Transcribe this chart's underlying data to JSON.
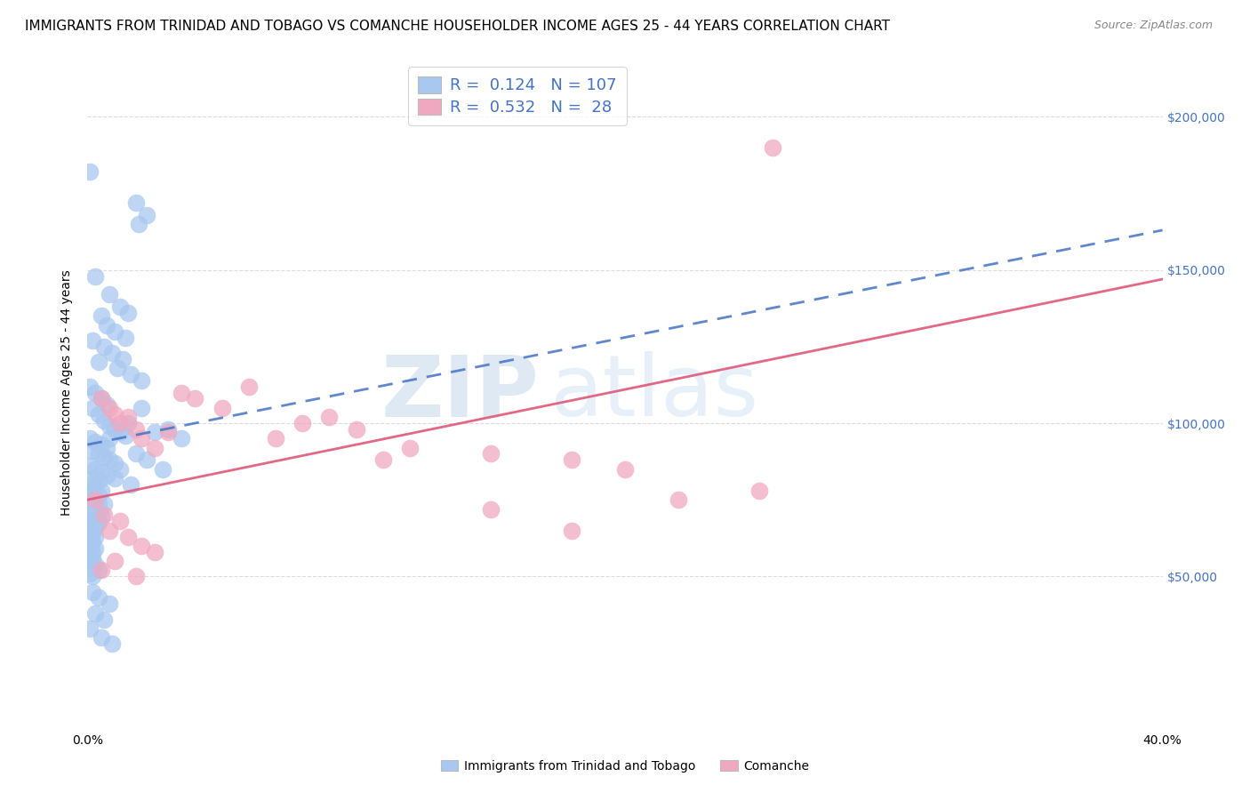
{
  "title": "IMMIGRANTS FROM TRINIDAD AND TOBAGO VS COMANCHE HOUSEHOLDER INCOME AGES 25 - 44 YEARS CORRELATION CHART",
  "source": "Source: ZipAtlas.com",
  "ylabel": "Householder Income Ages 25 - 44 years",
  "xlim": [
    0.0,
    0.4
  ],
  "ylim": [
    0,
    220000
  ],
  "xticks": [
    0.0,
    0.05,
    0.1,
    0.15,
    0.2,
    0.25,
    0.3,
    0.35,
    0.4
  ],
  "xticklabels": [
    "0.0%",
    "",
    "",
    "",
    "",
    "",
    "",
    "",
    "40.0%"
  ],
  "ytick_positions": [
    0,
    50000,
    100000,
    150000,
    200000
  ],
  "ytick_labels": [
    "",
    "$50,000",
    "$100,000",
    "$150,000",
    "$200,000"
  ],
  "blue_color": "#a8c8f0",
  "pink_color": "#f0a8c0",
  "blue_line_color": "#4472c4",
  "pink_line_color": "#e05878",
  "legend_label1": "Immigrants from Trinidad and Tobago",
  "legend_label2": "Comanche",
  "watermark": "ZIPatlas",
  "title_fontsize": 11,
  "axis_label_fontsize": 10,
  "tick_label_fontsize": 10,
  "right_tick_color": "#4472c4",
  "blue_line_x0": 0.0,
  "blue_line_y0": 93000,
  "blue_line_x1": 0.4,
  "blue_line_y1": 163000,
  "pink_line_x0": 0.0,
  "pink_line_y0": 75000,
  "pink_line_x1": 0.4,
  "pink_line_y1": 147000,
  "blue_dots": [
    [
      0.001,
      182000
    ],
    [
      0.018,
      172000
    ],
    [
      0.022,
      168000
    ],
    [
      0.019,
      165000
    ],
    [
      0.003,
      148000
    ],
    [
      0.008,
      142000
    ],
    [
      0.012,
      138000
    ],
    [
      0.015,
      136000
    ],
    [
      0.005,
      135000
    ],
    [
      0.007,
      132000
    ],
    [
      0.01,
      130000
    ],
    [
      0.014,
      128000
    ],
    [
      0.002,
      127000
    ],
    [
      0.006,
      125000
    ],
    [
      0.009,
      123000
    ],
    [
      0.013,
      121000
    ],
    [
      0.004,
      120000
    ],
    [
      0.011,
      118000
    ],
    [
      0.016,
      116000
    ],
    [
      0.02,
      114000
    ],
    [
      0.001,
      112000
    ],
    [
      0.003,
      110000
    ],
    [
      0.005,
      108000
    ],
    [
      0.007,
      106000
    ],
    [
      0.002,
      105000
    ],
    [
      0.004,
      103000
    ],
    [
      0.006,
      101000
    ],
    [
      0.008,
      99000
    ],
    [
      0.01,
      98000
    ],
    [
      0.012,
      97000
    ],
    [
      0.014,
      96000
    ],
    [
      0.001,
      95000
    ],
    [
      0.003,
      94000
    ],
    [
      0.005,
      93000
    ],
    [
      0.007,
      92000
    ],
    [
      0.002,
      91000
    ],
    [
      0.004,
      90000
    ],
    [
      0.006,
      89000
    ],
    [
      0.008,
      88000
    ],
    [
      0.01,
      87000
    ],
    [
      0.001,
      86000
    ],
    [
      0.003,
      85000
    ],
    [
      0.005,
      84000
    ],
    [
      0.007,
      83000
    ],
    [
      0.002,
      82000
    ],
    [
      0.004,
      81000
    ],
    [
      0.001,
      80000
    ],
    [
      0.003,
      79000
    ],
    [
      0.005,
      78000
    ],
    [
      0.002,
      77000
    ],
    [
      0.004,
      76500
    ],
    [
      0.001,
      76000
    ],
    [
      0.003,
      75500
    ],
    [
      0.002,
      75000
    ],
    [
      0.001,
      74500
    ],
    [
      0.004,
      74000
    ],
    [
      0.006,
      73500
    ],
    [
      0.002,
      73000
    ],
    [
      0.003,
      72500
    ],
    [
      0.001,
      72000
    ],
    [
      0.002,
      71500
    ],
    [
      0.004,
      71000
    ],
    [
      0.001,
      70500
    ],
    [
      0.003,
      70000
    ],
    [
      0.005,
      69500
    ],
    [
      0.002,
      69000
    ],
    [
      0.001,
      68500
    ],
    [
      0.003,
      68000
    ],
    [
      0.004,
      67500
    ],
    [
      0.002,
      67000
    ],
    [
      0.001,
      66500
    ],
    [
      0.003,
      66000
    ],
    [
      0.001,
      65000
    ],
    [
      0.002,
      64000
    ],
    [
      0.003,
      63000
    ],
    [
      0.001,
      62000
    ],
    [
      0.002,
      61000
    ],
    [
      0.001,
      60000
    ],
    [
      0.003,
      59000
    ],
    [
      0.002,
      58000
    ],
    [
      0.001,
      57000
    ],
    [
      0.002,
      56000
    ],
    [
      0.001,
      55000
    ],
    [
      0.003,
      54000
    ],
    [
      0.002,
      53000
    ],
    [
      0.004,
      52000
    ],
    [
      0.001,
      51000
    ],
    [
      0.002,
      50000
    ],
    [
      0.008,
      95000
    ],
    [
      0.015,
      100000
    ],
    [
      0.025,
      97000
    ],
    [
      0.035,
      95000
    ],
    [
      0.02,
      105000
    ],
    [
      0.03,
      98000
    ],
    [
      0.018,
      90000
    ],
    [
      0.022,
      88000
    ],
    [
      0.012,
      85000
    ],
    [
      0.028,
      85000
    ],
    [
      0.01,
      82000
    ],
    [
      0.016,
      80000
    ],
    [
      0.002,
      45000
    ],
    [
      0.004,
      43000
    ],
    [
      0.008,
      41000
    ],
    [
      0.003,
      38000
    ],
    [
      0.006,
      36000
    ],
    [
      0.001,
      33000
    ],
    [
      0.005,
      30000
    ],
    [
      0.009,
      28000
    ]
  ],
  "pink_dots": [
    [
      0.255,
      190000
    ],
    [
      0.005,
      108000
    ],
    [
      0.008,
      105000
    ],
    [
      0.01,
      103000
    ],
    [
      0.012,
      100000
    ],
    [
      0.015,
      102000
    ],
    [
      0.018,
      98000
    ],
    [
      0.02,
      95000
    ],
    [
      0.025,
      92000
    ],
    [
      0.03,
      97000
    ],
    [
      0.035,
      110000
    ],
    [
      0.04,
      108000
    ],
    [
      0.05,
      105000
    ],
    [
      0.06,
      112000
    ],
    [
      0.07,
      95000
    ],
    [
      0.08,
      100000
    ],
    [
      0.09,
      102000
    ],
    [
      0.1,
      98000
    ],
    [
      0.11,
      88000
    ],
    [
      0.12,
      92000
    ],
    [
      0.15,
      90000
    ],
    [
      0.18,
      88000
    ],
    [
      0.2,
      85000
    ],
    [
      0.22,
      75000
    ],
    [
      0.25,
      78000
    ],
    [
      0.003,
      75000
    ],
    [
      0.006,
      70000
    ],
    [
      0.008,
      65000
    ],
    [
      0.012,
      68000
    ],
    [
      0.015,
      63000
    ],
    [
      0.02,
      60000
    ],
    [
      0.025,
      58000
    ],
    [
      0.01,
      55000
    ],
    [
      0.005,
      52000
    ],
    [
      0.018,
      50000
    ],
    [
      0.15,
      72000
    ],
    [
      0.18,
      65000
    ]
  ]
}
